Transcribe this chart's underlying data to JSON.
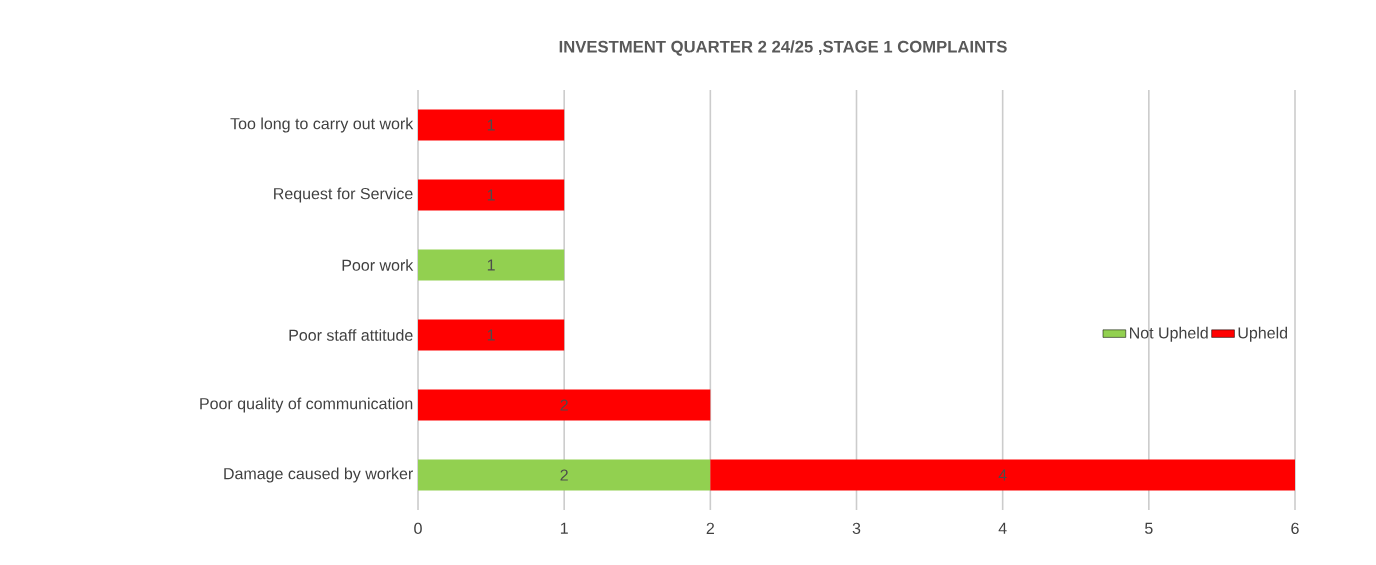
{
  "chart_data": {
    "type": "bar",
    "orientation": "horizontal",
    "stacked": true,
    "title": "INVESTMENT QUARTER 2 24/25 ,STAGE 1 COMPLAINTS",
    "categories": [
      "Too long to carry out work",
      "Request for Service",
      "Poor work",
      "Poor staff attitude",
      "Poor quality of communication",
      "Damage caused by worker"
    ],
    "series": [
      {
        "name": "Not Upheld",
        "color": "#92d050",
        "values": [
          null,
          null,
          1,
          null,
          null,
          2
        ]
      },
      {
        "name": "Upheld",
        "color": "#ff0000",
        "values": [
          1,
          1,
          null,
          1,
          2,
          4
        ]
      }
    ],
    "xlim": [
      0,
      6
    ],
    "xticks": [
      0,
      1,
      2,
      3,
      4,
      5,
      6
    ],
    "grid": "x",
    "legend": "right",
    "data_labels": true
  }
}
